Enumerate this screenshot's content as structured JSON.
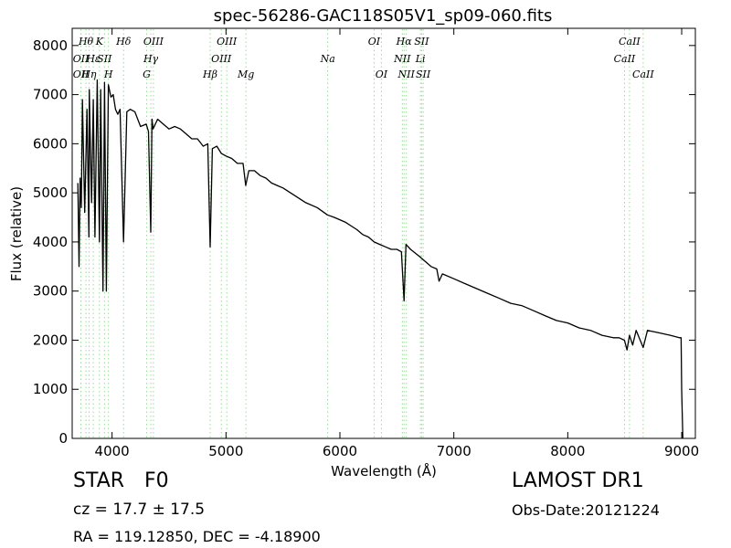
{
  "chart_data": {
    "type": "line",
    "title": "spec-56286-GAC118S05V1_sp09-060.fits",
    "xlabel": "Wavelength (Å)",
    "ylabel": "Flux (relative)",
    "xlim": [
      3650,
      9120
    ],
    "ylim": [
      0,
      8350
    ],
    "xticks": [
      4000,
      5000,
      6000,
      7000,
      8000,
      9000
    ],
    "yticks": [
      0,
      1000,
      2000,
      3000,
      4000,
      5000,
      6000,
      7000,
      8000
    ],
    "grid": false,
    "line_color": "#000000",
    "marker_color": "#99dd99",
    "series": [
      {
        "x": [
          3700,
          3710,
          3720,
          3730,
          3740,
          3760,
          3780,
          3797,
          3800,
          3820,
          3835,
          3850,
          3870,
          3889,
          3900,
          3920,
          3934,
          3950,
          3968,
          3990,
          4010,
          4030,
          4050,
          4070,
          4101,
          4130,
          4160,
          4200,
          4250,
          4300,
          4320,
          4340,
          4350,
          4360,
          4400,
          4450,
          4500,
          4550,
          4600,
          4650,
          4700,
          4750,
          4800,
          4840,
          4861,
          4880,
          4920,
          4960,
          5000,
          5050,
          5100,
          5150,
          5173,
          5200,
          5250,
          5300,
          5350,
          5400,
          5450,
          5500,
          5600,
          5700,
          5800,
          5890,
          5950,
          6050,
          6150,
          6200,
          6250,
          6300,
          6350,
          6400,
          6450,
          6500,
          6540,
          6563,
          6580,
          6620,
          6700,
          6800,
          6850,
          6870,
          6900,
          7000,
          7100,
          7200,
          7300,
          7400,
          7500,
          7600,
          7700,
          7800,
          7900,
          8000,
          8100,
          8200,
          8300,
          8400,
          8450,
          8498,
          8520,
          8542,
          8570,
          8600,
          8662,
          8700,
          8800,
          8900,
          8980,
          8995,
          9000,
          9010
        ],
        "y": [
          5200,
          3500,
          5300,
          4700,
          6900,
          4600,
          6700,
          4100,
          7100,
          4800,
          6900,
          4100,
          7300,
          4000,
          7100,
          3000,
          7250,
          3000,
          7200,
          6950,
          7000,
          6700,
          6600,
          6700,
          4000,
          6650,
          6700,
          6650,
          6350,
          6400,
          6250,
          4200,
          6500,
          6300,
          6500,
          6400,
          6300,
          6350,
          6300,
          6200,
          6100,
          6100,
          5950,
          6000,
          3900,
          5900,
          5950,
          5800,
          5750,
          5700,
          5600,
          5600,
          5150,
          5450,
          5450,
          5350,
          5300,
          5200,
          5150,
          5100,
          4950,
          4800,
          4700,
          4550,
          4500,
          4400,
          4250,
          4150,
          4100,
          4000,
          3950,
          3900,
          3850,
          3850,
          3800,
          2800,
          3950,
          3850,
          3700,
          3500,
          3450,
          3200,
          3350,
          3250,
          3150,
          3050,
          2950,
          2850,
          2750,
          2700,
          2600,
          2500,
          2400,
          2350,
          2250,
          2200,
          2100,
          2050,
          2050,
          2000,
          1800,
          2100,
          1900,
          2200,
          1850,
          2200,
          2150,
          2100,
          2050,
          2050,
          1000,
          0
        ]
      }
    ],
    "lines": [
      {
        "x": 3727,
        "label": "OII",
        "row": 1
      },
      {
        "x": 3727,
        "label": "OII",
        "row": 2
      },
      {
        "x": 3771,
        "label": "Hθ",
        "row": 0
      },
      {
        "x": 3798,
        "label": "Hη",
        "row": 2
      },
      {
        "x": 3835,
        "label": "Hε",
        "row": 1
      },
      {
        "x": 3889,
        "label": "K",
        "row": 0
      },
      {
        "x": 3933,
        "label": "SII",
        "row": 1
      },
      {
        "x": 3968,
        "label": "H",
        "row": 2
      },
      {
        "x": 4101,
        "label": "Hδ",
        "row": 0
      },
      {
        "x": 4304,
        "label": "G",
        "row": 2
      },
      {
        "x": 4340,
        "label": "Hγ",
        "row": 1
      },
      {
        "x": 4363,
        "label": "OIII",
        "row": 0
      },
      {
        "x": 4861,
        "label": "Hβ",
        "row": 2
      },
      {
        "x": 4959,
        "label": "OIII",
        "row": 1
      },
      {
        "x": 5007,
        "label": "OIII",
        "row": 0
      },
      {
        "x": 5175,
        "label": "Mg",
        "row": 2
      },
      {
        "x": 5893,
        "label": "Na",
        "row": 1
      },
      {
        "x": 6300,
        "label": "OI",
        "row": 0
      },
      {
        "x": 6364,
        "label": "OI",
        "row": 2
      },
      {
        "x": 6548,
        "label": "NII",
        "row": 1
      },
      {
        "x": 6563,
        "label": "Hα",
        "row": 0
      },
      {
        "x": 6583,
        "label": "NII",
        "row": 2
      },
      {
        "x": 6707,
        "label": "Li",
        "row": 1
      },
      {
        "x": 6717,
        "label": "SII",
        "row": 0
      },
      {
        "x": 6731,
        "label": "SII",
        "row": 2
      },
      {
        "x": 8498,
        "label": "CaII",
        "row": 1
      },
      {
        "x": 8542,
        "label": "CaII",
        "row": 0
      },
      {
        "x": 8662,
        "label": "CaII",
        "row": 2
      }
    ]
  },
  "footer": {
    "class_label": "STAR",
    "subclass": "F0",
    "redshift": "cz = 17.7 ± 17.5",
    "coords": "RA = 119.12850, DEC = -4.18900",
    "survey": "LAMOST DR1",
    "obs_date": "Obs-Date:20121224"
  }
}
